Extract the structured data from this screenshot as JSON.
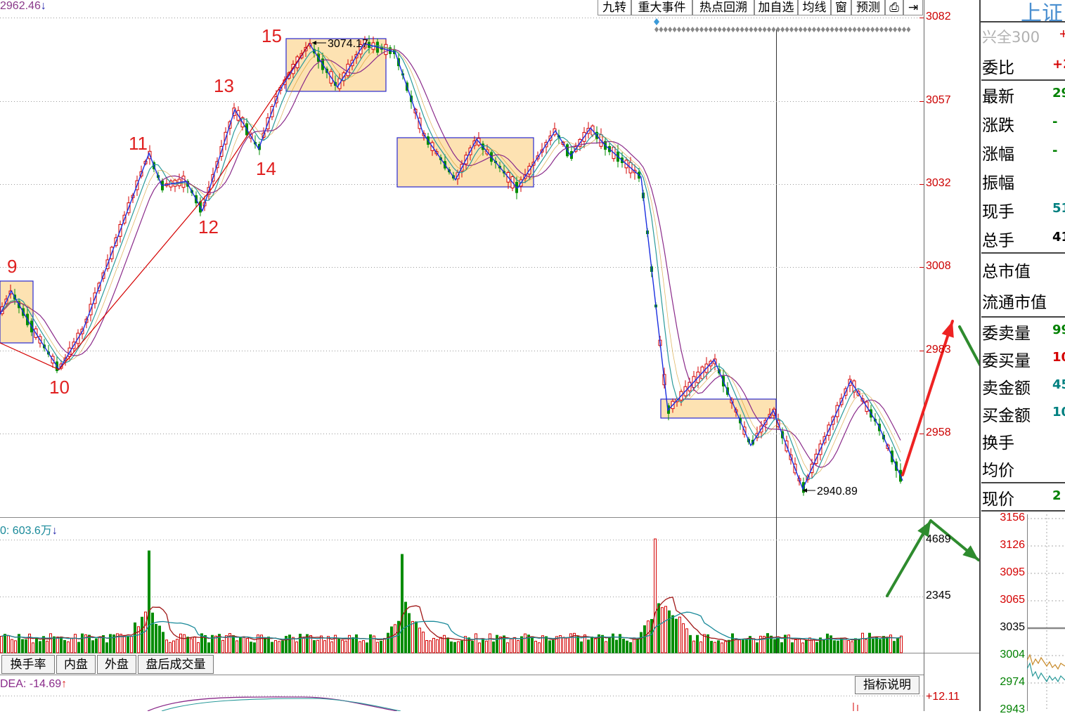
{
  "toolbar": {
    "items": [
      "九转",
      "重大事件",
      "热点回溯",
      "加自选",
      "均线",
      "窗",
      "预测"
    ]
  },
  "price_pane": {
    "header_value": "2962.46",
    "header_arrow": "↓",
    "y_ticks": [
      "3082",
      "3057",
      "3032",
      "3008",
      "2983",
      "2958"
    ],
    "high_label": "3074.17",
    "low_label": "2940.89",
    "wave_labels": [
      "9",
      "10",
      "11",
      "12",
      "13",
      "14",
      "15"
    ]
  },
  "volume_pane": {
    "header": "0: 603.6万",
    "header_arrow": "↓",
    "y_ticks": [
      "4689",
      "2345"
    ]
  },
  "tabs": [
    "换手率",
    "内盘",
    "外盘",
    "盘后成交量"
  ],
  "indicator_pane": {
    "header": "DEA: -14.69",
    "header_arrow": "↑",
    "explain_button": "指标说明",
    "y_tick": "+12.11"
  },
  "quote_panel": {
    "title": "上证",
    "related_name": "兴全300",
    "related_change": "+",
    "rows": [
      {
        "label": "委比",
        "value": "+2",
        "color": "#d40000"
      },
      {
        "label": "最新",
        "value": "29",
        "color": "#008000"
      },
      {
        "label": "涨跌",
        "value": "-",
        "color": "#008000"
      },
      {
        "label": "涨幅",
        "value": "-",
        "color": "#008000"
      },
      {
        "label": "振幅",
        "value": "",
        "color": "#000000"
      },
      {
        "label": "现手",
        "value": "51",
        "color": "#008080"
      },
      {
        "label": "总手",
        "value": "41",
        "color": "#000000"
      }
    ],
    "cap_rows": [
      "总市值",
      "流通市值"
    ],
    "amount_rows": [
      {
        "label": "委卖量",
        "value": "99",
        "color": "#008000"
      },
      {
        "label": "委买量",
        "value": "10",
        "color": "#d40000"
      },
      {
        "label": "卖金额",
        "value": "45",
        "color": "#008080"
      },
      {
        "label": "买金额",
        "value": "10",
        "color": "#008080"
      },
      {
        "label": "换手",
        "value": "",
        "color": "#000000"
      },
      {
        "label": "均价",
        "value": "",
        "color": "#000000"
      }
    ],
    "current_price_label": "现价",
    "current_price_value": "2",
    "mini_chart_ticks": [
      "3156",
      "3126",
      "3095",
      "3065",
      "3035",
      "3004",
      "2974",
      "2943"
    ]
  },
  "colors": {
    "up": "#d40000",
    "down": "#008c00",
    "zigzag": "#1a2ee0",
    "box_fill": "#fde2b2",
    "ma_teal": "#2a9a9a",
    "ma_purple": "#8a2a8a",
    "arrow_red": "#ee2222",
    "arrow_green": "#2e8b2e"
  }
}
